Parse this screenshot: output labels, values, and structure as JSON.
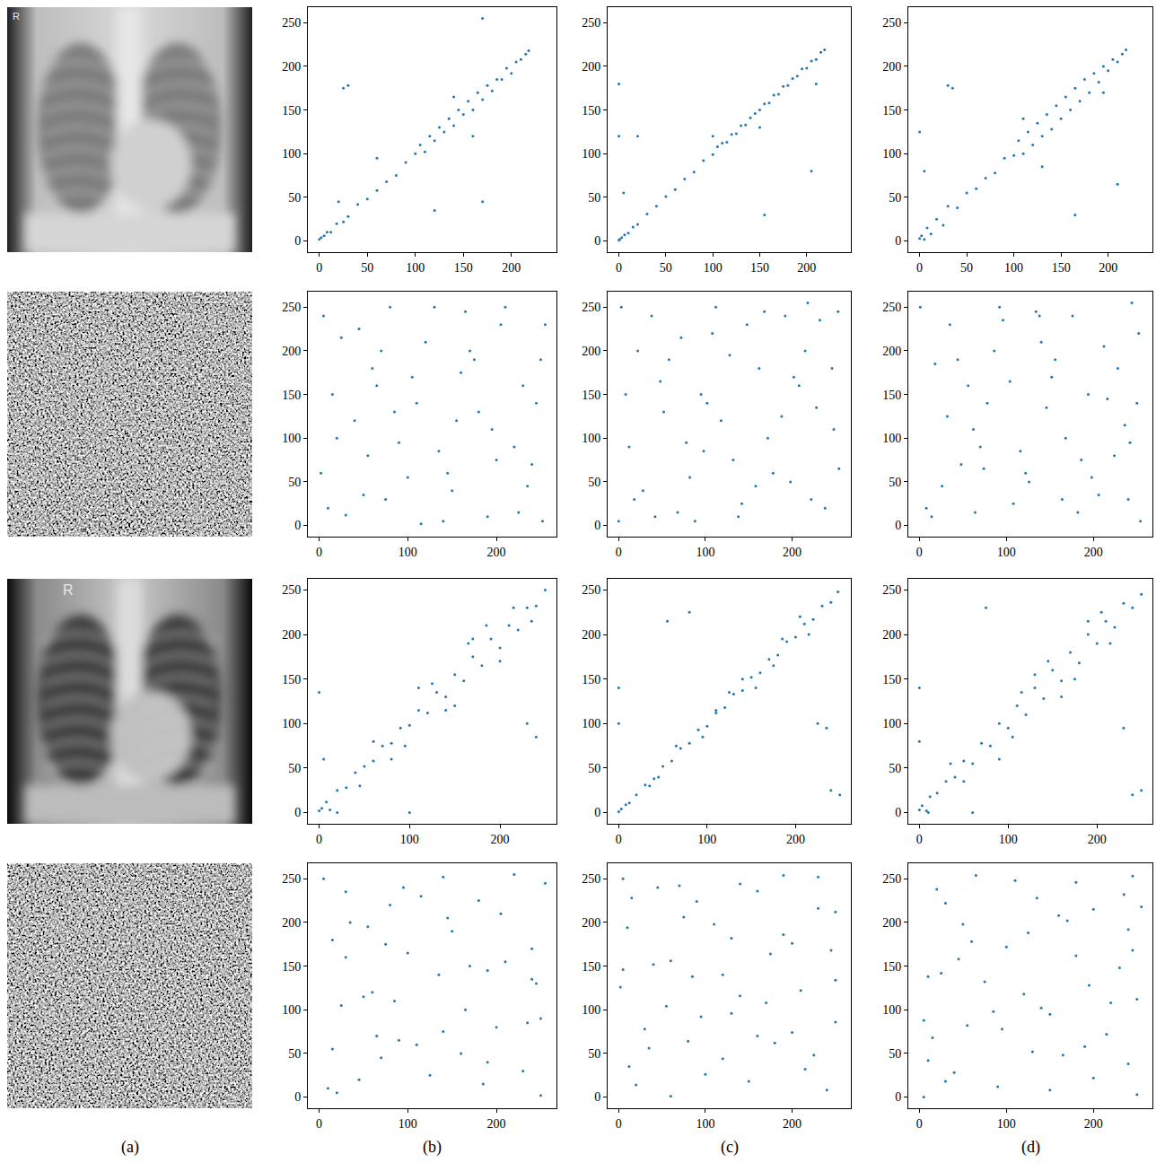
{
  "chart_data": [
    {
      "type": "scatter",
      "color": "#1f77b4",
      "xlim": [
        -12,
        247
      ],
      "ylim": [
        -12.75,
        267.75
      ],
      "xticks": [
        0,
        50,
        100,
        150,
        200
      ],
      "yticks": [
        0,
        50,
        100,
        150,
        200,
        250
      ],
      "x": [
        0,
        2,
        5,
        8,
        12,
        18,
        25,
        30,
        40,
        50,
        60,
        70,
        80,
        90,
        100,
        105,
        110,
        115,
        120,
        125,
        130,
        135,
        140,
        145,
        150,
        155,
        160,
        165,
        170,
        175,
        180,
        185,
        190,
        195,
        200,
        205,
        210,
        215,
        218,
        25,
        30,
        170,
        170,
        120,
        20,
        60,
        140,
        160
      ],
      "y": [
        2,
        4,
        6,
        10,
        10,
        20,
        22,
        28,
        42,
        48,
        58,
        68,
        75,
        90,
        100,
        110,
        102,
        120,
        115,
        130,
        125,
        140,
        132,
        150,
        145,
        160,
        150,
        170,
        162,
        178,
        172,
        185,
        185,
        198,
        192,
        205,
        208,
        214,
        218,
        175,
        178,
        255,
        45,
        35,
        45,
        95,
        165,
        120
      ]
    },
    {
      "type": "scatter",
      "color": "#1f77b4",
      "xlim": [
        -12,
        247
      ],
      "ylim": [
        -12.75,
        267.75
      ],
      "xticks": [
        0,
        50,
        100,
        150,
        200
      ],
      "yticks": [
        0,
        50,
        100,
        150,
        200,
        250
      ],
      "x": [
        0,
        1,
        3,
        6,
        10,
        15,
        20,
        30,
        40,
        50,
        60,
        70,
        80,
        90,
        100,
        105,
        110,
        115,
        120,
        125,
        130,
        135,
        140,
        145,
        150,
        155,
        160,
        165,
        170,
        175,
        180,
        185,
        190,
        195,
        200,
        205,
        210,
        215,
        219,
        0,
        0,
        20,
        155,
        205,
        210,
        5,
        100,
        150
      ],
      "y": [
        1,
        2,
        4,
        7,
        9,
        16,
        19,
        31,
        40,
        51,
        59,
        71,
        79,
        92,
        99,
        108,
        112,
        113,
        122,
        123,
        132,
        133,
        141,
        146,
        150,
        157,
        158,
        167,
        168,
        177,
        178,
        186,
        189,
        197,
        198,
        206,
        208,
        216,
        219,
        180,
        120,
        120,
        30,
        80,
        180,
        55,
        120,
        130
      ]
    },
    {
      "type": "scatter",
      "color": "#1f77b4",
      "xlim": [
        -12,
        247
      ],
      "ylim": [
        -12.75,
        267.75
      ],
      "xticks": [
        0,
        50,
        100,
        150,
        200
      ],
      "yticks": [
        0,
        50,
        100,
        150,
        200,
        250
      ],
      "x": [
        0,
        2,
        5,
        8,
        12,
        18,
        25,
        30,
        40,
        50,
        60,
        70,
        80,
        90,
        100,
        105,
        110,
        115,
        120,
        125,
        130,
        135,
        140,
        145,
        150,
        155,
        160,
        165,
        170,
        175,
        180,
        185,
        190,
        195,
        200,
        205,
        210,
        215,
        219,
        0,
        30,
        35,
        5,
        165,
        210,
        195,
        110,
        130
      ],
      "y": [
        3,
        6,
        2,
        15,
        8,
        25,
        18,
        40,
        38,
        55,
        60,
        72,
        78,
        95,
        98,
        115,
        100,
        125,
        110,
        135,
        120,
        145,
        128,
        155,
        140,
        165,
        150,
        175,
        160,
        185,
        170,
        192,
        182,
        200,
        195,
        208,
        205,
        214,
        219,
        125,
        178,
        175,
        80,
        30,
        65,
        170,
        140,
        85
      ]
    },
    {
      "type": "scatter",
      "color": "#1f77b4",
      "xlim": [
        -12.75,
        267.75
      ],
      "ylim": [
        -12.75,
        267.75
      ],
      "xticks": [
        0,
        100,
        200
      ],
      "yticks": [
        0,
        50,
        100,
        150,
        200,
        250
      ],
      "x": [
        5,
        30,
        60,
        90,
        120,
        150,
        180,
        210,
        240,
        252,
        15,
        45,
        75,
        105,
        135,
        165,
        195,
        225,
        250,
        2,
        20,
        50,
        80,
        110,
        140,
        170,
        200,
        230,
        255,
        10,
        40,
        70,
        100,
        130,
        160,
        190,
        220,
        245,
        25,
        55,
        85,
        115,
        145,
        175,
        205,
        235,
        65,
        155
      ],
      "y": [
        240,
        12,
        180,
        95,
        210,
        40,
        130,
        250,
        70,
        5,
        150,
        225,
        30,
        170,
        85,
        245,
        110,
        15,
        190,
        60,
        100,
        35,
        250,
        140,
        5,
        200,
        75,
        160,
        230,
        20,
        120,
        200,
        55,
        250,
        175,
        10,
        90,
        140,
        215,
        80,
        130,
        2,
        60,
        190,
        230,
        45,
        160,
        120
      ]
    },
    {
      "type": "scatter",
      "color": "#1f77b4",
      "xlim": [
        -12.75,
        267.75
      ],
      "ylim": [
        -12.75,
        267.75
      ],
      "xticks": [
        0,
        100,
        200
      ],
      "yticks": [
        0,
        50,
        100,
        150,
        200,
        250
      ],
      "x": [
        3,
        28,
        58,
        88,
        118,
        148,
        178,
        208,
        238,
        253,
        12,
        42,
        72,
        102,
        132,
        162,
        192,
        222,
        248,
        0,
        22,
        52,
        82,
        112,
        142,
        172,
        202,
        232,
        254,
        8,
        38,
        68,
        98,
        128,
        158,
        188,
        218,
        246,
        18,
        48,
        78,
        108,
        138,
        168,
        198,
        228,
        95,
        215
      ],
      "y": [
        250,
        40,
        190,
        5,
        120,
        230,
        60,
        160,
        20,
        245,
        90,
        10,
        215,
        140,
        75,
        180,
        240,
        30,
        110,
        5,
        200,
        130,
        55,
        250,
        25,
        100,
        170,
        235,
        65,
        150,
        240,
        15,
        85,
        195,
        45,
        125,
        255,
        180,
        30,
        165,
        95,
        220,
        10,
        245,
        50,
        135,
        150,
        200
      ]
    },
    {
      "type": "scatter",
      "color": "#1f77b4",
      "xlim": [
        -12.75,
        267.75
      ],
      "ylim": [
        -12.75,
        267.75
      ],
      "xticks": [
        0,
        100,
        200
      ],
      "yticks": [
        0,
        50,
        100,
        150,
        200,
        250
      ],
      "x": [
        8,
        35,
        62,
        92,
        122,
        152,
        182,
        212,
        242,
        250,
        18,
        48,
        78,
        108,
        138,
        168,
        198,
        228,
        254,
        1,
        26,
        56,
        86,
        116,
        146,
        176,
        206,
        236,
        252,
        14,
        44,
        74,
        104,
        134,
        164,
        194,
        224,
        244,
        32,
        64,
        96,
        126,
        156,
        186,
        216,
        240,
        70,
        140
      ],
      "y": [
        20,
        230,
        110,
        250,
        60,
        170,
        15,
        205,
        95,
        140,
        185,
        70,
        140,
        25,
        240,
        100,
        55,
        180,
        5,
        250,
        45,
        160,
        200,
        85,
        135,
        240,
        35,
        115,
        220,
        10,
        190,
        65,
        165,
        245,
        30,
        150,
        80,
        255,
        125,
        15,
        235,
        50,
        190,
        75,
        145,
        30,
        90,
        210
      ]
    },
    {
      "type": "scatter",
      "color": "#1f77b4",
      "xlim": [
        -12.5,
        262.5
      ],
      "ylim": [
        -12.5,
        262.5
      ],
      "xticks": [
        0,
        100,
        200
      ],
      "yticks": [
        0,
        50,
        100,
        150,
        200,
        250
      ],
      "x": [
        0,
        3,
        8,
        12,
        20,
        30,
        40,
        50,
        60,
        70,
        80,
        90,
        100,
        110,
        120,
        130,
        140,
        150,
        160,
        170,
        180,
        190,
        200,
        210,
        220,
        230,
        240,
        250,
        0,
        5,
        230,
        240,
        100,
        20,
        60,
        80,
        110,
        140,
        170,
        200,
        215,
        45,
        125,
        150,
        185,
        95,
        165,
        235
      ],
      "y": [
        2,
        5,
        12,
        3,
        25,
        28,
        45,
        52,
        58,
        75,
        78,
        95,
        98,
        115,
        112,
        135,
        130,
        155,
        148,
        175,
        165,
        195,
        185,
        210,
        205,
        230,
        232,
        250,
        135,
        60,
        100,
        85,
        0,
        0,
        80,
        60,
        140,
        115,
        195,
        170,
        230,
        30,
        145,
        120,
        210,
        75,
        190,
        215
      ]
    },
    {
      "type": "scatter",
      "color": "#1f77b4",
      "xlim": [
        -12.5,
        262.5
      ],
      "ylim": [
        -12.5,
        262.5
      ],
      "xticks": [
        0,
        100,
        200
      ],
      "yticks": [
        0,
        50,
        100,
        150,
        200,
        250
      ],
      "x": [
        0,
        3,
        8,
        12,
        20,
        30,
        40,
        50,
        60,
        70,
        80,
        90,
        100,
        110,
        120,
        130,
        140,
        150,
        160,
        170,
        180,
        190,
        200,
        210,
        220,
        230,
        240,
        248,
        0,
        0,
        55,
        80,
        225,
        235,
        240,
        250,
        65,
        95,
        125,
        155,
        185,
        215,
        45,
        110,
        140,
        175,
        205,
        35
      ],
      "y": [
        1,
        4,
        9,
        11,
        20,
        31,
        38,
        52,
        58,
        72,
        78,
        93,
        97,
        112,
        118,
        133,
        137,
        152,
        157,
        172,
        177,
        192,
        197,
        212,
        217,
        232,
        236,
        248,
        140,
        100,
        215,
        225,
        100,
        95,
        25,
        20,
        75,
        85,
        135,
        140,
        195,
        200,
        40,
        115,
        150,
        165,
        220,
        30
      ]
    },
    {
      "type": "scatter",
      "color": "#1f77b4",
      "xlim": [
        -12.5,
        262.5
      ],
      "ylim": [
        -12.5,
        262.5
      ],
      "xticks": [
        0,
        100,
        200
      ],
      "yticks": [
        0,
        50,
        100,
        150,
        200,
        250
      ],
      "x": [
        0,
        3,
        8,
        12,
        20,
        30,
        40,
        50,
        60,
        70,
        80,
        90,
        100,
        110,
        120,
        130,
        140,
        150,
        160,
        170,
        180,
        190,
        200,
        210,
        220,
        230,
        240,
        250,
        0,
        0,
        10,
        60,
        75,
        240,
        250,
        230,
        50,
        90,
        130,
        160,
        190,
        215,
        35,
        105,
        145,
        175,
        205,
        115
      ],
      "y": [
        3,
        8,
        2,
        18,
        22,
        35,
        40,
        58,
        55,
        78,
        75,
        100,
        95,
        120,
        110,
        140,
        128,
        160,
        148,
        180,
        168,
        200,
        190,
        215,
        208,
        235,
        230,
        245,
        140,
        80,
        0,
        0,
        230,
        20,
        25,
        95,
        35,
        60,
        155,
        130,
        215,
        190,
        55,
        85,
        170,
        150,
        225,
        135
      ]
    },
    {
      "type": "scatter",
      "color": "#1f77b4",
      "xlim": [
        -12.75,
        267.75
      ],
      "ylim": [
        -12.75,
        267.75
      ],
      "xticks": [
        0,
        100,
        200
      ],
      "yticks": [
        0,
        50,
        100,
        150,
        200,
        250
      ],
      "x": [
        20,
        230,
        110,
        250,
        60,
        170,
        15,
        205,
        95,
        140,
        185,
        70,
        140,
        25,
        240,
        100,
        55,
        180,
        5,
        250,
        45,
        160,
        200,
        85,
        135,
        240,
        35,
        115,
        220,
        10,
        190,
        65,
        165,
        245,
        30,
        150,
        80,
        255,
        125,
        15,
        235,
        50,
        190,
        75,
        145,
        30,
        90,
        210
      ],
      "y": [
        5,
        30,
        60,
        90,
        120,
        150,
        180,
        210,
        240,
        252,
        15,
        45,
        75,
        105,
        135,
        165,
        195,
        225,
        250,
        2,
        20,
        50,
        80,
        110,
        140,
        170,
        200,
        230,
        255,
        10,
        40,
        70,
        100,
        130,
        160,
        190,
        220,
        245,
        25,
        55,
        85,
        115,
        145,
        175,
        205,
        235,
        65,
        155
      ]
    },
    {
      "type": "scatter",
      "color": "#1f77b4",
      "xlim": [
        -12.75,
        267.75
      ],
      "ylim": [
        -12.75,
        267.75
      ],
      "xticks": [
        0,
        100,
        200
      ],
      "yticks": [
        0,
        50,
        100,
        150,
        200,
        250
      ],
      "x": [
        240,
        12,
        180,
        95,
        210,
        40,
        130,
        250,
        70,
        5,
        150,
        225,
        30,
        170,
        85,
        245,
        110,
        15,
        190,
        60,
        100,
        35,
        250,
        140,
        5,
        200,
        75,
        160,
        230,
        20,
        120,
        200,
        55,
        250,
        175,
        10,
        90,
        140,
        215,
        80,
        130,
        2,
        60,
        190,
        230,
        45,
        160,
        120
      ],
      "y": [
        8,
        35,
        62,
        92,
        122,
        152,
        182,
        212,
        242,
        250,
        18,
        48,
        78,
        108,
        138,
        168,
        198,
        228,
        254,
        1,
        26,
        56,
        86,
        116,
        146,
        176,
        206,
        236,
        252,
        14,
        44,
        74,
        104,
        134,
        164,
        194,
        224,
        244,
        32,
        64,
        96,
        126,
        156,
        186,
        216,
        240,
        70,
        140
      ]
    },
    {
      "type": "scatter",
      "color": "#1f77b4",
      "xlim": [
        -12.75,
        267.75
      ],
      "ylim": [
        -12.75,
        267.75
      ],
      "xticks": [
        0,
        100,
        200
      ],
      "yticks": [
        0,
        50,
        100,
        150,
        200,
        250
      ],
      "x": [
        250,
        40,
        190,
        5,
        120,
        230,
        60,
        160,
        20,
        245,
        90,
        10,
        215,
        140,
        75,
        180,
        240,
        30,
        110,
        5,
        200,
        130,
        55,
        250,
        25,
        100,
        170,
        235,
        65,
        150,
        240,
        15,
        85,
        195,
        45,
        125,
        255,
        180,
        30,
        165,
        95,
        220,
        10,
        245,
        50,
        135,
        150,
        200
      ],
      "y": [
        3,
        28,
        58,
        88,
        118,
        148,
        178,
        208,
        238,
        253,
        12,
        42,
        72,
        102,
        132,
        162,
        192,
        222,
        248,
        0,
        22,
        52,
        82,
        112,
        142,
        172,
        202,
        232,
        254,
        8,
        38,
        68,
        98,
        128,
        158,
        188,
        218,
        246,
        18,
        48,
        78,
        108,
        138,
        168,
        198,
        228,
        95,
        215
      ]
    }
  ],
  "captions": [
    "(a)",
    "(b)",
    "(c)",
    "(d)"
  ],
  "image_text": "R"
}
